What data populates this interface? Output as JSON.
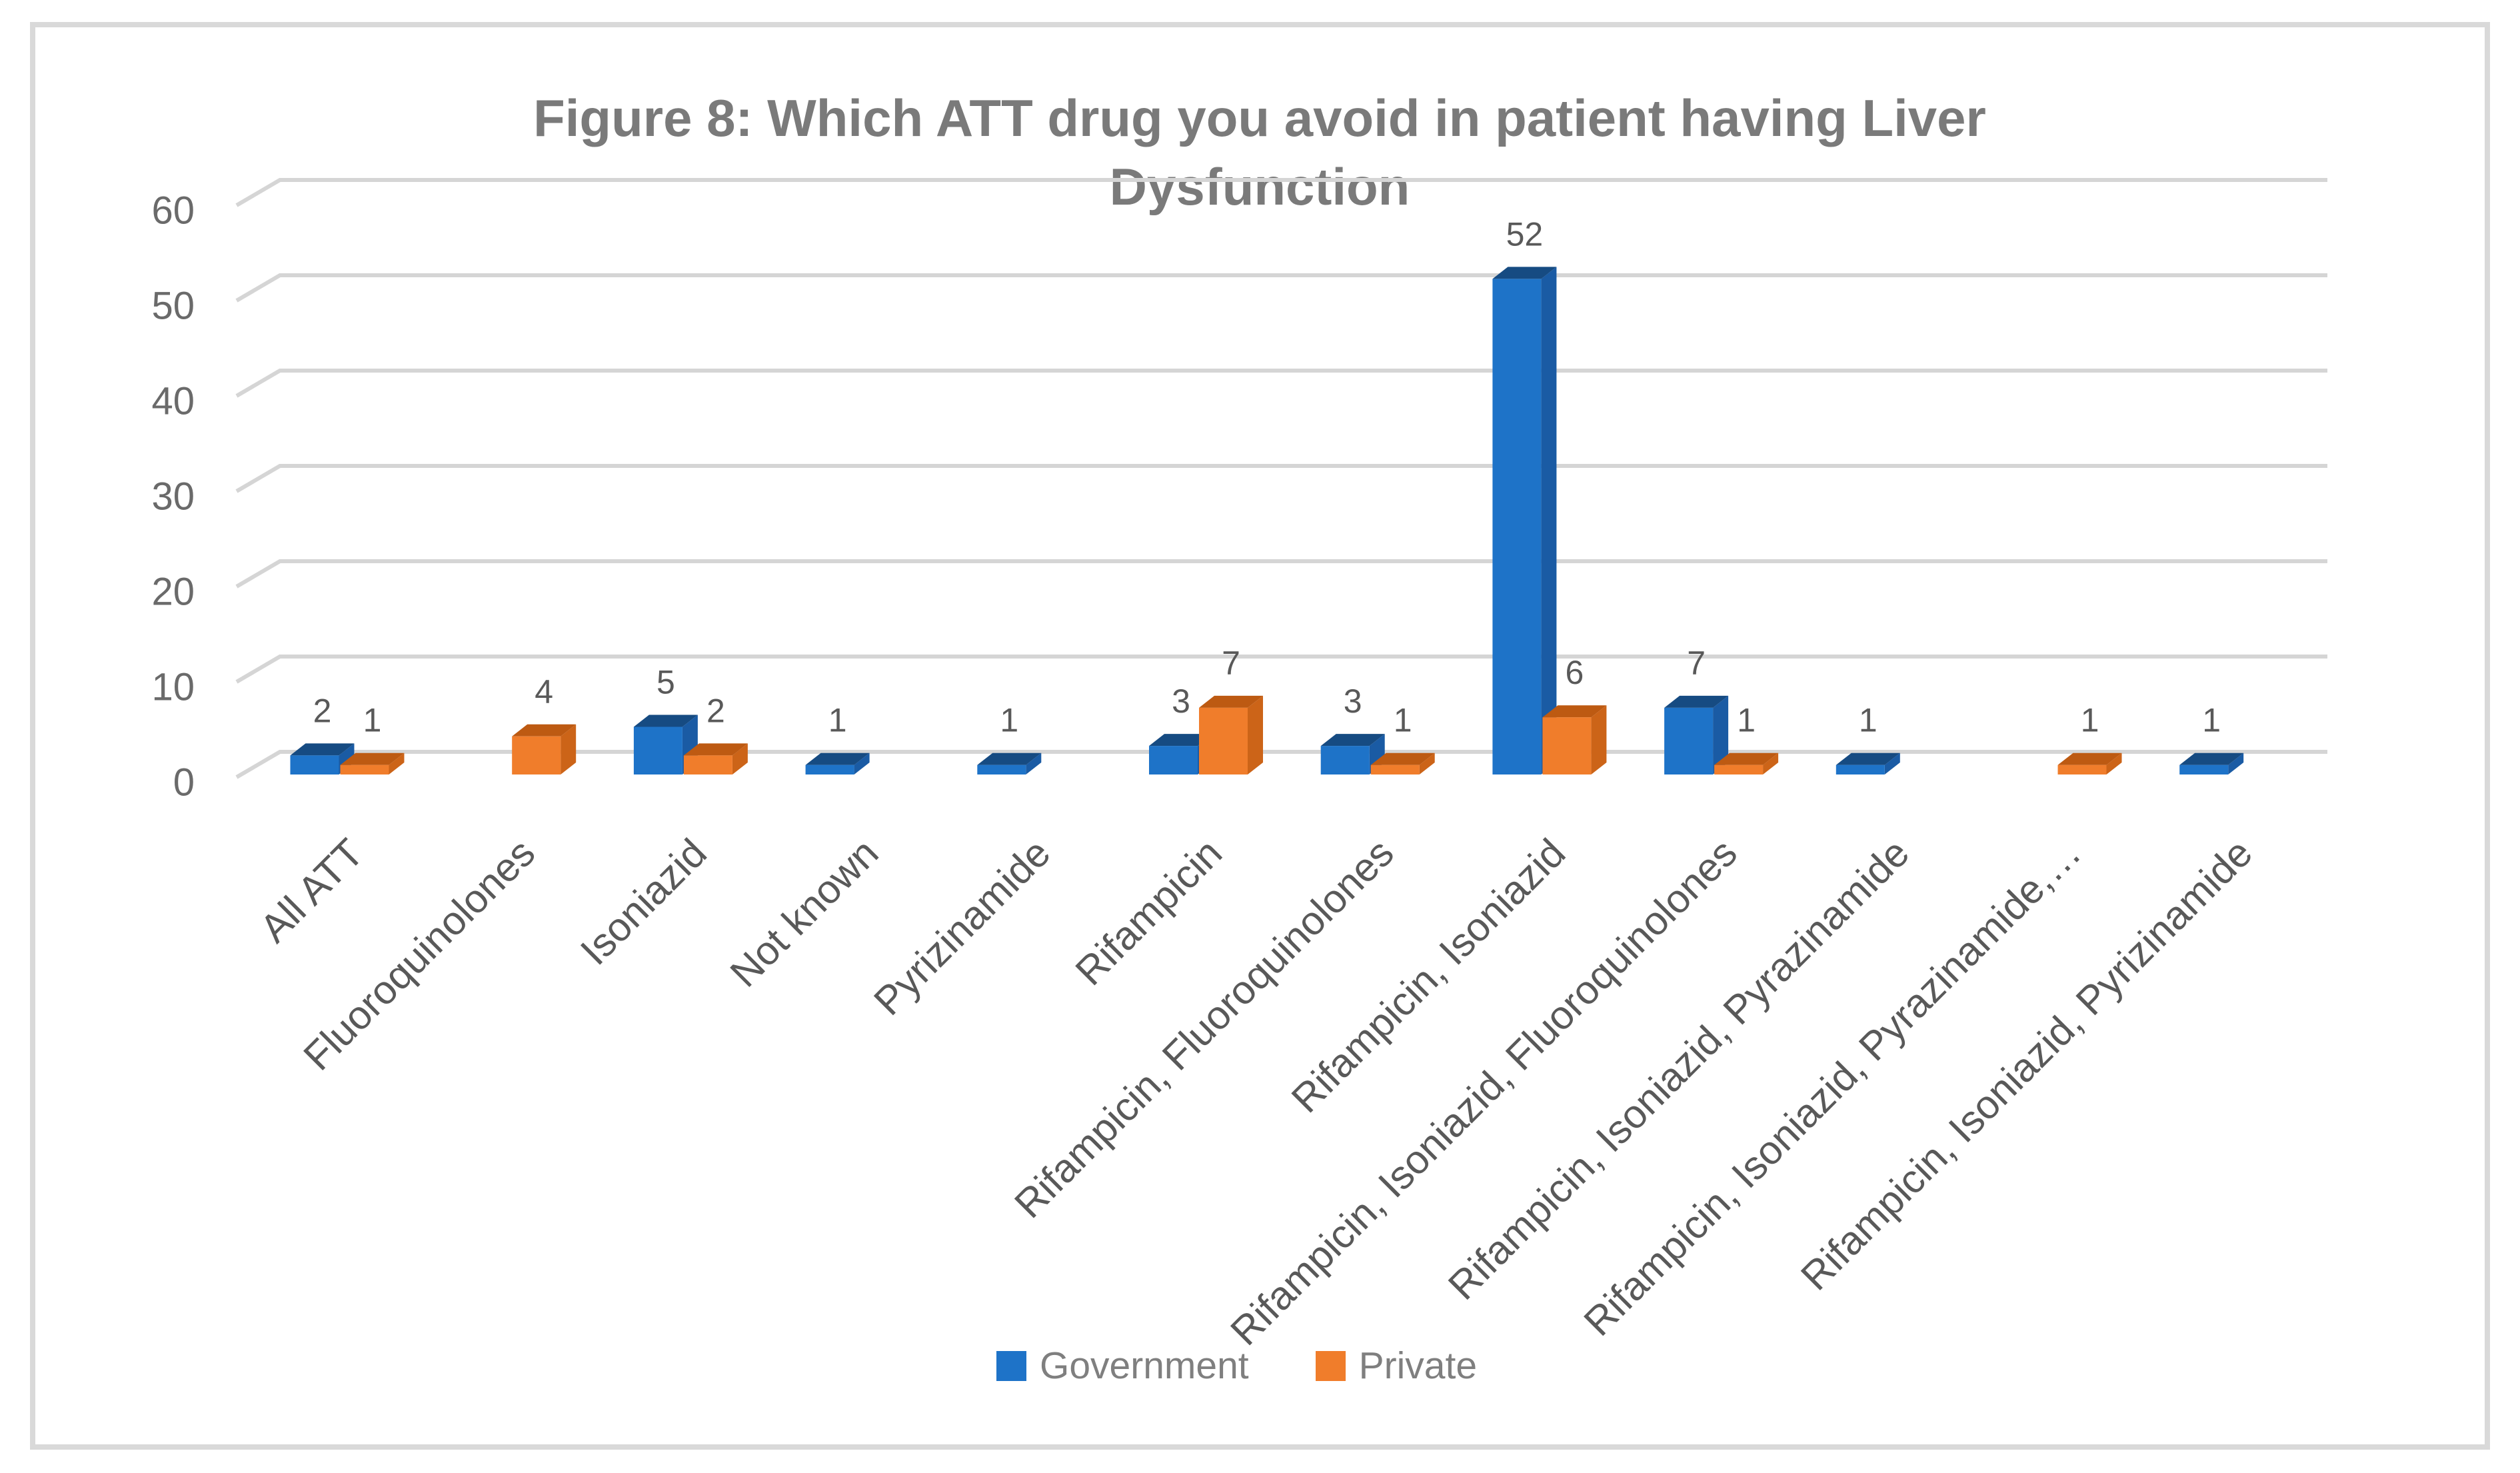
{
  "chart_data": {
    "type": "bar",
    "projection": "3d",
    "title": "Figure 8: Which ATT drug you avoid in patient having Liver Dysfunction",
    "categories": [
      "All ATT",
      "Fluoroquinolones",
      "Isoniazid",
      "Not known",
      "Pyrizinamide",
      "Rifampicin",
      "Rifampicin, Fluoroquinolones",
      "Rifampicin, Isoniazid",
      "Rifampicin, Isoniazid, Fluoroquinolones",
      "Rifampicin, Isoniazid, Pyrazinamide",
      "Rifampicin, Isoniazid, Pyrazinamide,…",
      "Rifampicin, Isoniazid, Pyrizinamide"
    ],
    "series": [
      {
        "name": "Government",
        "values": [
          2,
          0,
          5,
          1,
          1,
          3,
          3,
          52,
          7,
          1,
          0,
          1
        ],
        "colors": {
          "front": "#1E73C8",
          "side": "#1A5BA4",
          "top": "#164B82"
        }
      },
      {
        "name": "Private",
        "values": [
          1,
          4,
          2,
          0,
          0,
          7,
          1,
          6,
          1,
          0,
          1,
          0
        ],
        "colors": {
          "front": "#F07D2B",
          "side": "#CC6418",
          "top": "#BD5A12"
        }
      }
    ],
    "y_ticks": [
      0,
      10,
      20,
      30,
      40,
      50,
      60
    ],
    "ylim": [
      0,
      60
    ],
    "xlabel": "",
    "ylabel": "",
    "grid": true,
    "data_labels_shown": true,
    "legend_position": "bottom",
    "grid_color": "#D5D5D5",
    "axis_text_color": "#6A6A6A",
    "data_label_color": "#595959",
    "category_text_color": "#595959",
    "title_color": "#7A7A7A",
    "border_color": "#D9D9D9"
  }
}
